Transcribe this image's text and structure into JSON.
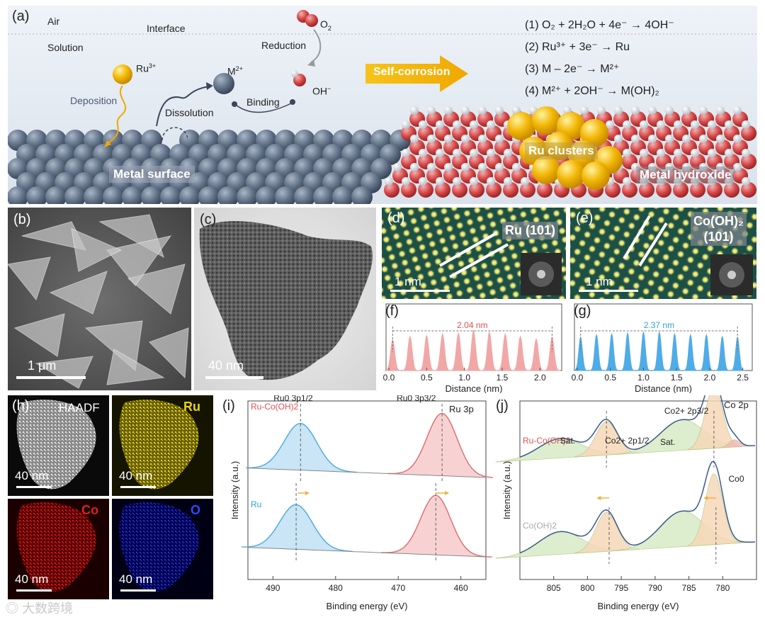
{
  "panel_a": {
    "label": "(a)",
    "air": "Air",
    "interface": "Interface",
    "solution": "Solution",
    "ru_ion": "Ru",
    "ru_ion_sup": "3+",
    "deposition": "Deposition",
    "dissolution": "Dissolution",
    "m_ion": "M",
    "m_ion_sup": "2+",
    "binding": "Binding",
    "oh": "OH",
    "oh_sup": "−",
    "reduction": "Reduction",
    "o2": "O",
    "o2_sub": "2",
    "metal_surface": "Metal surface",
    "self_corrosion": "Self-corrosion",
    "ru_clusters": "Ru clusters",
    "metal_hydroxide": "Metal hydroxide",
    "eq1": "(1)  O₂ + 2H₂O + 4e⁻ → 4OH⁻",
    "eq2": "(2)  Ru³⁺ + 3e⁻ → Ru",
    "eq3": "(3)  M – 2e⁻ → M²⁺",
    "eq4": "(4)  M²⁺ + 2OH⁻ → M(OH)₂"
  },
  "panel_b": {
    "label": "(b)",
    "scale": "1 μm"
  },
  "panel_c": {
    "label": "(c)",
    "scale": "40 nm"
  },
  "panel_d": {
    "label": "(d)",
    "plane": "Ru (101)",
    "scale": "1 nm"
  },
  "panel_e": {
    "label": "(e)",
    "plane_1": "Co(OH)₂",
    "plane_2": "(101)",
    "scale": "1 nm"
  },
  "panel_f": {
    "label": "(f)"
  },
  "panel_g": {
    "label": "(g)"
  },
  "panel_h": {
    "label": "(h)",
    "haadf": "HAADF",
    "ru": "Ru",
    "co": "Co",
    "o": "O",
    "scale": "40 nm"
  },
  "panel_i": {
    "label": "(i)"
  },
  "panel_j": {
    "label": "(j)"
  },
  "watermark": "大数跨境",
  "colors": {
    "ru": "#e8d21a",
    "co": "#e02020",
    "o": "#3048ff",
    "red_peak": "#f2a3a3",
    "blue_peak": "#47a8e6"
  },
  "chart_data": [
    {
      "id": "f",
      "type": "line",
      "xlabel": "Distance (nm)",
      "xticks": [
        "0.0",
        "0.5",
        "1.0",
        "1.5",
        "2.0"
      ],
      "xlim": [
        0,
        2.25
      ],
      "annotation": "2.04 nm",
      "peaks_x": [
        0.05,
        0.28,
        0.5,
        0.71,
        0.92,
        1.12,
        1.33,
        1.54,
        1.74,
        1.95,
        2.16
      ],
      "peak_heights": [
        0.72,
        0.8,
        0.82,
        0.86,
        0.88,
        0.94,
        0.9,
        0.86,
        0.8,
        0.74,
        0.78
      ]
    },
    {
      "id": "g",
      "type": "line",
      "xlabel": "Distance (nm)",
      "xticks": [
        "0.0",
        "0.5",
        "1.0",
        "1.5",
        "2.0",
        "2.5"
      ],
      "xlim": [
        0,
        2.6
      ],
      "annotation": "2.37 nm",
      "peaks_x": [
        0.05,
        0.29,
        0.52,
        0.76,
        1.0,
        1.24,
        1.47,
        1.71,
        1.95,
        2.19,
        2.42
      ],
      "peak_heights": [
        0.78,
        0.84,
        0.86,
        0.88,
        0.9,
        0.9,
        0.86,
        0.84,
        0.84,
        0.8,
        0.78
      ]
    },
    {
      "id": "i",
      "type": "line",
      "title": "Ru 3p",
      "xlabel": "Binding energy (eV)",
      "ylabel": "Intensity (a.u.)",
      "xlim": [
        494,
        456
      ],
      "xticks": [
        "490",
        "480",
        "470",
        "460"
      ],
      "series": [
        {
          "name": "Ru-Co(OH)2",
          "peaks": [
            {
              "center": 485.6,
              "height": 0.75,
              "label": "Ru0 3p1/2"
            },
            {
              "center": 463.0,
              "height": 1.0,
              "label": "Ru0 3p3/2"
            }
          ]
        },
        {
          "name": "Ru",
          "peaks": [
            {
              "center": 486.3,
              "height": 0.75
            },
            {
              "center": 464.0,
              "height": 1.0
            }
          ]
        }
      ]
    },
    {
      "id": "j",
      "type": "line",
      "title": "Co 2p",
      "xlabel": "Binding energy (eV)",
      "ylabel": "Intensity (a.u.)",
      "xlim": [
        810,
        775
      ],
      "xticks": [
        "805",
        "800",
        "795",
        "790",
        "785",
        "780"
      ],
      "series": [
        {
          "name": "Ru-Co(OH)2",
          "peaks": [
            {
              "center": 797.2,
              "label": "Co2+ 2p1/2"
            },
            {
              "center": 781.3,
              "label": "Co2+ 2p3/2"
            },
            {
              "center": 778.3,
              "label": "Co0"
            }
          ],
          "satellites": [
            "Sat.",
            "Sat."
          ]
        },
        {
          "name": "Co(OH)2",
          "peaks": [
            {
              "center": 796.8
            },
            {
              "center": 781.0
            }
          ]
        }
      ]
    }
  ]
}
